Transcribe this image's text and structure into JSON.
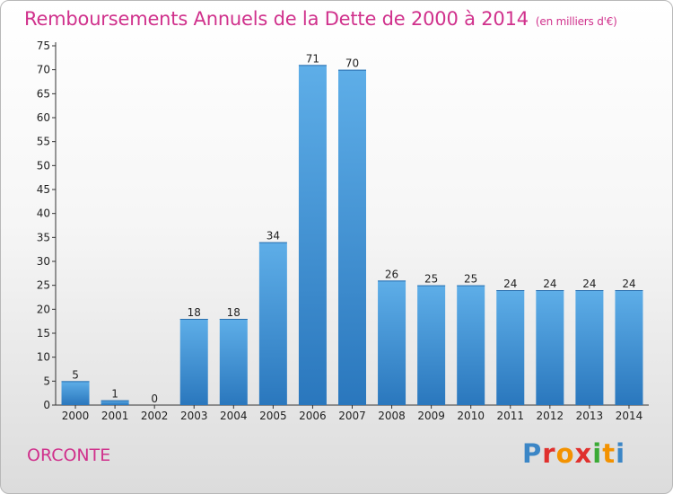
{
  "title": "Remboursements Annuels de la Dette de 2000 à 2014",
  "unit": "(en milliers d'€)",
  "commune": "ORCONTE",
  "brand": {
    "letters": [
      {
        "ch": "P",
        "color": "#3b86c6"
      },
      {
        "ch": "r",
        "color": "#e0302d"
      },
      {
        "ch": "o",
        "color": "#f39200"
      },
      {
        "ch": "x",
        "color": "#e0302d"
      },
      {
        "ch": "i",
        "color": "#3aaa35"
      },
      {
        "ch": "t",
        "color": "#f39200"
      },
      {
        "ch": "i",
        "color": "#3b86c6"
      }
    ]
  },
  "colors": {
    "title": "#d0318c",
    "bar_top": "#5eaee8",
    "bar_bottom": "#2a77bd"
  },
  "chart_data": {
    "type": "bar",
    "title": "Remboursements Annuels de la Dette de 2000 à 2014",
    "subtitle": "(en milliers d'€)",
    "categories": [
      "2000",
      "2001",
      "2002",
      "2003",
      "2004",
      "2005",
      "2006",
      "2007",
      "2008",
      "2009",
      "2010",
      "2011",
      "2012",
      "2013",
      "2014"
    ],
    "values": [
      5,
      1,
      0,
      18,
      18,
      34,
      71,
      70,
      26,
      25,
      25,
      24,
      24,
      24,
      24
    ],
    "yticks": [
      0,
      5,
      10,
      15,
      20,
      25,
      30,
      35,
      40,
      45,
      50,
      55,
      60,
      65,
      70,
      75
    ],
    "ylim": [
      0,
      75
    ],
    "grid": false,
    "data_labels": true
  }
}
